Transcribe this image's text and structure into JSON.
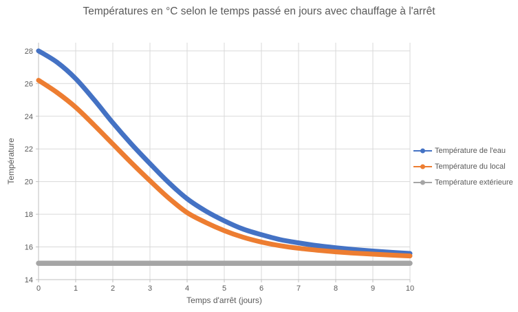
{
  "chart_data": {
    "type": "line",
    "title": "Températures en °C selon le temps passé en jours avec chauffage à l'arrêt",
    "xlabel": "Temps d'arrêt (jours)",
    "ylabel": "Température",
    "xlim": [
      0,
      10
    ],
    "ylim": [
      14,
      28.5
    ],
    "x_ticks": [
      0,
      1,
      2,
      3,
      4,
      5,
      6,
      7,
      8,
      9,
      10
    ],
    "y_ticks": [
      14,
      16,
      18,
      20,
      22,
      24,
      26,
      28
    ],
    "grid": true,
    "legend_position": "right",
    "x": [
      0,
      0.5,
      1,
      1.5,
      2,
      2.5,
      3,
      3.5,
      4,
      4.5,
      5,
      5.5,
      6,
      6.5,
      7,
      7.5,
      8,
      8.5,
      9,
      9.5,
      10
    ],
    "series": [
      {
        "name": "Température de l'eau",
        "color": "#4472C4",
        "values": [
          28.0,
          27.3,
          26.3,
          25.0,
          23.6,
          22.3,
          21.1,
          19.95,
          18.95,
          18.2,
          17.6,
          17.1,
          16.75,
          16.45,
          16.25,
          16.08,
          15.95,
          15.84,
          15.75,
          15.67,
          15.6
        ]
      },
      {
        "name": "Température du local",
        "color": "#ED7D31",
        "values": [
          26.2,
          25.45,
          24.55,
          23.45,
          22.3,
          21.15,
          20.05,
          19.0,
          18.1,
          17.5,
          17.0,
          16.6,
          16.3,
          16.08,
          15.92,
          15.8,
          15.7,
          15.62,
          15.56,
          15.5,
          15.45
        ]
      },
      {
        "name": "Température extérieure",
        "color": "#A5A5A5",
        "values": [
          15,
          15,
          15,
          15,
          15,
          15,
          15,
          15,
          15,
          15,
          15,
          15,
          15,
          15,
          15,
          15,
          15,
          15,
          15,
          15,
          15
        ]
      }
    ]
  },
  "colors": {
    "gridline": "#D9D9D9",
    "axis_line": "#BFBFBF",
    "tick_text": "#595959",
    "background": "#FFFFFF"
  }
}
